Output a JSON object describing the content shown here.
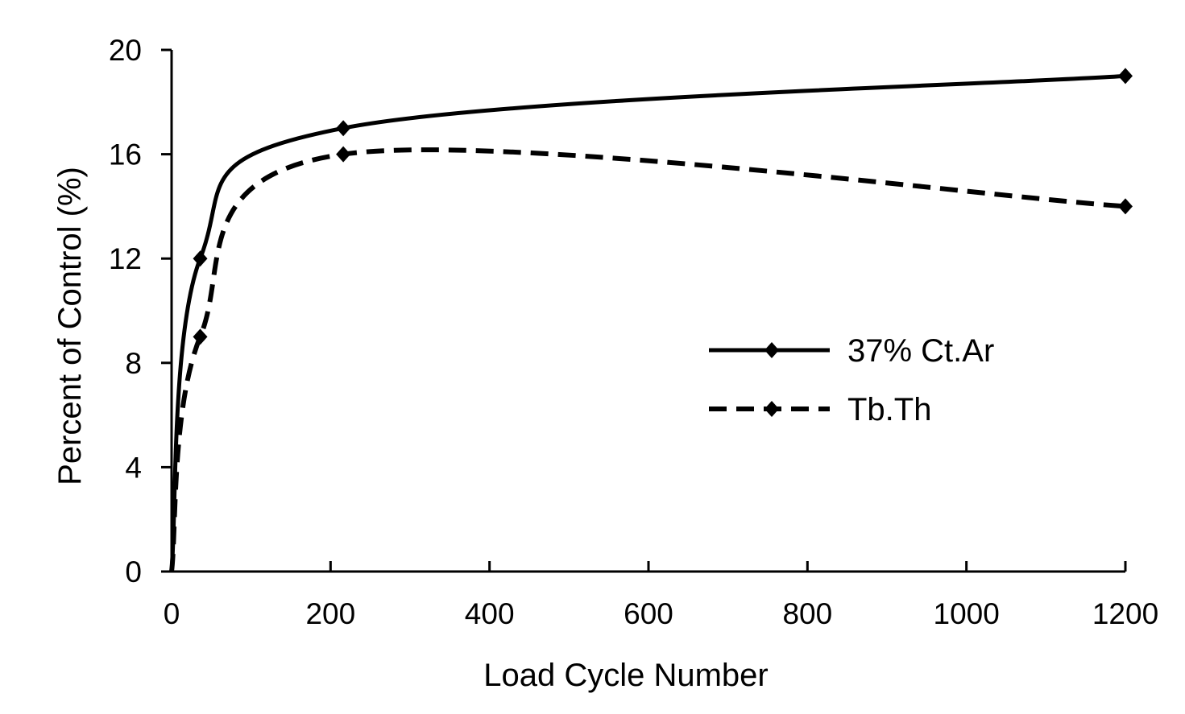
{
  "chart_data": {
    "type": "line",
    "title": "",
    "xlabel": "Load Cycle Number",
    "ylabel": "Percent of Control (%)",
    "xlim": [
      0,
      1200
    ],
    "ylim": [
      0,
      20
    ],
    "xticks": [
      0,
      200,
      400,
      600,
      800,
      1000,
      1200
    ],
    "yticks": [
      0,
      4,
      8,
      12,
      16,
      20
    ],
    "grid": false,
    "legend_position": "center-right",
    "x": [
      0,
      36,
      216,
      1200
    ],
    "series": [
      {
        "name": "37% Ct.Ar",
        "values": [
          0,
          12,
          17,
          19
        ],
        "style": "solid",
        "color": "#000000",
        "marker": "diamond"
      },
      {
        "name": "Tb.Th",
        "values": [
          0,
          9,
          16,
          14
        ],
        "style": "dashed",
        "color": "#000000",
        "marker": "diamond"
      }
    ]
  }
}
